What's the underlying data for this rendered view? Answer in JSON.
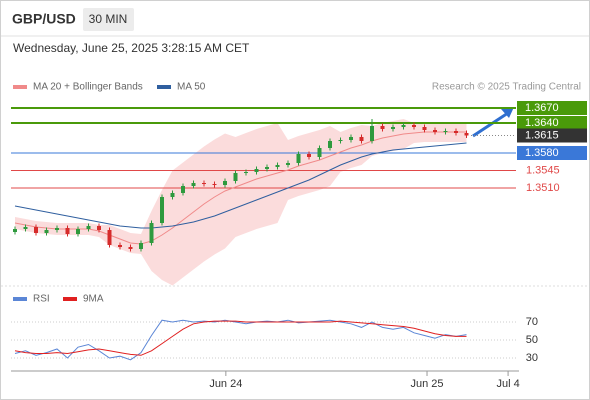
{
  "header": {
    "symbol": "GBP/USD",
    "timeframe": "30 MIN",
    "timestamp": "Wednesday, June 25, 2025 3:28:15 AM CET"
  },
  "chart_data": [
    {
      "type": "candlestick",
      "source": "Research © 2025 Trading Central",
      "x": [
        0,
        2.5,
        5,
        7.5,
        10,
        12.5,
        15,
        17.5,
        20,
        22.5,
        25,
        27.5,
        30,
        32.5,
        35,
        37.5,
        40,
        42.5,
        45,
        47.5,
        50,
        52.5,
        55,
        57.5,
        60,
        62.5,
        65,
        67.5,
        70,
        72.5,
        75,
        77.5,
        80,
        82.5,
        85,
        87.5,
        90,
        92.5,
        95,
        97.5,
        100,
        102.5,
        105,
        107.5
      ],
      "open": [
        1.3422,
        1.3428,
        1.3432,
        1.342,
        1.3426,
        1.343,
        1.3418,
        1.3428,
        1.3434,
        1.3426,
        1.3396,
        1.3392,
        1.3388,
        1.34,
        1.344,
        1.3492,
        1.35,
        1.3514,
        1.352,
        1.3518,
        1.3516,
        1.3524,
        1.354,
        1.3542,
        1.3548,
        1.3552,
        1.3556,
        1.356,
        1.3578,
        1.3572,
        1.359,
        1.3604,
        1.3606,
        1.3612,
        1.3604,
        1.3634,
        1.3628,
        1.3632,
        1.3636,
        1.3632,
        1.3626,
        1.3622,
        1.3624,
        1.362
      ],
      "high": [
        1.3433,
        1.3437,
        1.3437,
        1.3431,
        1.3435,
        1.3435,
        1.3433,
        1.3439,
        1.3439,
        1.3431,
        1.3401,
        1.3397,
        1.3405,
        1.3445,
        1.3497,
        1.3505,
        1.3519,
        1.3525,
        1.3525,
        1.3523,
        1.3529,
        1.3545,
        1.3547,
        1.3553,
        1.3557,
        1.3561,
        1.3565,
        1.3583,
        1.3583,
        1.3595,
        1.3609,
        1.3611,
        1.3617,
        1.3617,
        1.3648,
        1.3639,
        1.3637,
        1.3641,
        1.3641,
        1.3637,
        1.3631,
        1.3629,
        1.3629,
        1.3625
      ],
      "low": [
        1.3417,
        1.3423,
        1.3415,
        1.3415,
        1.3421,
        1.3413,
        1.3413,
        1.3423,
        1.3421,
        1.3391,
        1.3387,
        1.3383,
        1.3383,
        1.3395,
        1.3435,
        1.3487,
        1.3495,
        1.3509,
        1.3513,
        1.3511,
        1.3511,
        1.3519,
        1.3535,
        1.3537,
        1.3543,
        1.3547,
        1.3551,
        1.3555,
        1.3567,
        1.3567,
        1.3585,
        1.3599,
        1.3601,
        1.3599,
        1.3599,
        1.3623,
        1.3623,
        1.3627,
        1.3627,
        1.3621,
        1.3617,
        1.3617,
        1.3615,
        1.361
      ],
      "close": [
        1.3428,
        1.3432,
        1.342,
        1.3426,
        1.343,
        1.3418,
        1.3428,
        1.3434,
        1.3426,
        1.3396,
        1.3392,
        1.3388,
        1.34,
        1.344,
        1.3492,
        1.35,
        1.3514,
        1.352,
        1.3518,
        1.3516,
        1.3524,
        1.354,
        1.3542,
        1.3548,
        1.3552,
        1.3556,
        1.356,
        1.3578,
        1.3572,
        1.359,
        1.3604,
        1.3606,
        1.3612,
        1.3604,
        1.3634,
        1.3628,
        1.3632,
        1.3636,
        1.3632,
        1.3626,
        1.3622,
        1.3624,
        1.362,
        1.3615
      ],
      "up_color": "#2e9a3e",
      "down_color": "#d62b2b",
      "series": [
        {
          "name": "MA 20 + Bollinger Bands",
          "color": "#f08a8a",
          "band_color": "#fbdcdc",
          "values": [
            1.344,
            1.3436,
            1.3432,
            1.343,
            1.3428,
            1.3428,
            1.3428,
            1.3428,
            1.3424,
            1.3416,
            1.3408,
            1.34,
            1.3398,
            1.3404,
            1.3416,
            1.343,
            1.3446,
            1.3462,
            1.3478,
            1.3492,
            1.3504,
            1.3512,
            1.352,
            1.3528,
            1.3534,
            1.354,
            1.3546,
            1.3554,
            1.356,
            1.3566,
            1.3574,
            1.3582,
            1.359,
            1.3596,
            1.3604,
            1.361,
            1.3614,
            1.3618,
            1.362,
            1.3622,
            1.3622,
            1.3622,
            1.3622,
            1.3622
          ],
          "upper": [
            1.3452,
            1.3448,
            1.3444,
            1.3442,
            1.344,
            1.344,
            1.344,
            1.344,
            1.3436,
            1.3436,
            1.3428,
            1.342,
            1.3418,
            1.3464,
            1.3506,
            1.3545,
            1.3561,
            1.3577,
            1.3593,
            1.3607,
            1.3619,
            1.3612,
            1.362,
            1.3628,
            1.3634,
            1.364,
            1.3606,
            1.3614,
            1.362,
            1.3626,
            1.3634,
            1.3622,
            1.363,
            1.3636,
            1.3634,
            1.364,
            1.3644,
            1.3648,
            1.364,
            1.3642,
            1.3642,
            1.3642,
            1.3642,
            1.3642
          ],
          "lower": [
            1.3428,
            1.3424,
            1.342,
            1.3418,
            1.3416,
            1.3416,
            1.3416,
            1.3416,
            1.3412,
            1.3396,
            1.3388,
            1.338,
            1.3378,
            1.3344,
            1.3326,
            1.3315,
            1.3331,
            1.3347,
            1.3363,
            1.3377,
            1.3389,
            1.3412,
            1.342,
            1.3428,
            1.3434,
            1.344,
            1.3486,
            1.3494,
            1.35,
            1.3506,
            1.3514,
            1.3542,
            1.355,
            1.3556,
            1.3574,
            1.358,
            1.3584,
            1.3588,
            1.36,
            1.3602,
            1.3602,
            1.3602,
            1.3602,
            1.3602
          ]
        },
        {
          "name": "MA 50",
          "color": "#2f5f9f",
          "values": [
            1.3474,
            1.347,
            1.3466,
            1.3462,
            1.3458,
            1.3454,
            1.345,
            1.3446,
            1.3442,
            1.3438,
            1.3434,
            1.3432,
            1.343,
            1.343,
            1.3432,
            1.3434,
            1.3438,
            1.3442,
            1.3448,
            1.3454,
            1.3462,
            1.347,
            1.3478,
            1.3486,
            1.3494,
            1.3502,
            1.351,
            1.3518,
            1.3526,
            1.3536,
            1.3546,
            1.3556,
            1.3564,
            1.3572,
            1.3578,
            1.3582,
            1.3586,
            1.3588,
            1.359,
            1.3592,
            1.3594,
            1.3596,
            1.3598,
            1.36
          ]
        }
      ],
      "levels": [
        {
          "value": 1.367,
          "label": "1.3670",
          "color": "#4a9a0a",
          "style": "box"
        },
        {
          "value": 1.364,
          "label": "1.3640",
          "color": "#4a9a0a",
          "style": "box"
        },
        {
          "value": 1.3615,
          "label": "1.3615",
          "color": "#333333",
          "style": "current"
        },
        {
          "value": 1.358,
          "label": "1.3580",
          "color": "#3a78d8",
          "style": "box"
        },
        {
          "value": 1.3545,
          "label": "1.3545",
          "color": "#e04848",
          "style": "text"
        },
        {
          "value": 1.351,
          "label": "1.3510",
          "color": "#e04848",
          "style": "text"
        }
      ],
      "xlim": [
        0,
        120
      ],
      "ylim": [
        1.3314,
        1.3694
      ]
    },
    {
      "type": "line",
      "x": [
        0,
        2.5,
        5,
        7.5,
        10,
        12.5,
        15,
        17.5,
        20,
        22.5,
        25,
        27.5,
        30,
        32.5,
        35,
        37.5,
        40,
        42.5,
        45,
        47.5,
        50,
        52.5,
        55,
        57.5,
        60,
        62.5,
        65,
        67.5,
        70,
        72.5,
        75,
        77.5,
        80,
        82.5,
        85,
        87.5,
        90,
        92.5,
        95,
        97.5,
        100,
        102.5,
        105,
        107.5
      ],
      "series": [
        {
          "name": "RSI",
          "color": "#5b86d6",
          "values": [
            35,
            38,
            33,
            36,
            40,
            30,
            42,
            45,
            38,
            30,
            32,
            28,
            36,
            55,
            72,
            70,
            72,
            70,
            71,
            70,
            72,
            70,
            68,
            70,
            71,
            70,
            72,
            69,
            70,
            71,
            72,
            70,
            68,
            64,
            70,
            64,
            62,
            64,
            58,
            55,
            52,
            56,
            54,
            56
          ]
        },
        {
          "name": "9MA",
          "color": "#e02020",
          "values": [
            38,
            36,
            35,
            35,
            36,
            35,
            37,
            39,
            40,
            38,
            36,
            34,
            33,
            38,
            46,
            54,
            62,
            68,
            70,
            71,
            71,
            71,
            70,
            70,
            70,
            70,
            70,
            70,
            70,
            70,
            70,
            71,
            70,
            69,
            68,
            67,
            66,
            65,
            63,
            60,
            57,
            55,
            54,
            54
          ]
        }
      ],
      "xlim": [
        0,
        120
      ],
      "ylim": [
        15,
        82
      ],
      "yticks": [
        70,
        50,
        30
      ],
      "grid": true,
      "xticks": [
        {
          "value": 50.2,
          "label": "Jun 24"
        },
        {
          "value": 98.1,
          "label": "Jun 25"
        },
        {
          "value": 117.4,
          "label": "Jul 4"
        }
      ]
    }
  ]
}
